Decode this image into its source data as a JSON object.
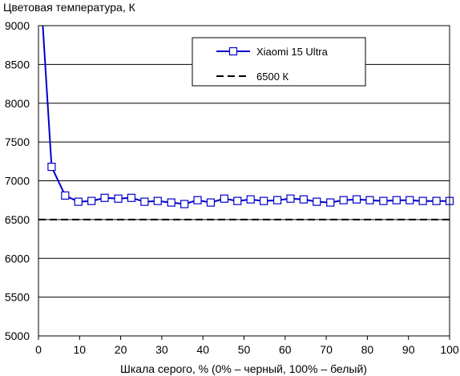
{
  "chart_data": {
    "type": "line",
    "title": "Цветовая температура, К",
    "xlabel": "Шкала серого, % (0% – черный, 100% – белый)",
    "ylabel": "",
    "xlim": [
      0,
      100
    ],
    "ylim": [
      5000,
      9000
    ],
    "x_ticks": [
      0,
      10,
      20,
      30,
      40,
      50,
      60,
      70,
      80,
      90,
      100
    ],
    "y_ticks": [
      5000,
      5500,
      6000,
      6500,
      7000,
      7500,
      8000,
      8500,
      9000
    ],
    "grid": "horizontal",
    "legend_position": "top-right",
    "series": [
      {
        "name": "Xiaomi 15 Ultra",
        "color": "#0000cc",
        "marker": "square-open",
        "x": [
          1,
          3.2,
          6.5,
          9.7,
          12.9,
          16.1,
          19.4,
          22.6,
          25.8,
          29.0,
          32.3,
          35.5,
          38.7,
          41.9,
          45.2,
          48.4,
          51.6,
          54.8,
          58.1,
          61.3,
          64.5,
          67.7,
          71.0,
          74.2,
          77.4,
          80.6,
          83.9,
          87.1,
          90.3,
          93.5,
          96.8,
          100
        ],
        "y": [
          9050,
          7180,
          6810,
          6730,
          6740,
          6780,
          6770,
          6780,
          6730,
          6740,
          6720,
          6700,
          6750,
          6720,
          6770,
          6740,
          6760,
          6740,
          6750,
          6770,
          6760,
          6730,
          6720,
          6750,
          6760,
          6750,
          6740,
          6750,
          6750,
          6740,
          6740,
          6740
        ]
      },
      {
        "name": "6500 К",
        "color": "#000000",
        "style": "dashed",
        "x": [
          0,
          100
        ],
        "y": [
          6500,
          6500
        ]
      }
    ]
  }
}
